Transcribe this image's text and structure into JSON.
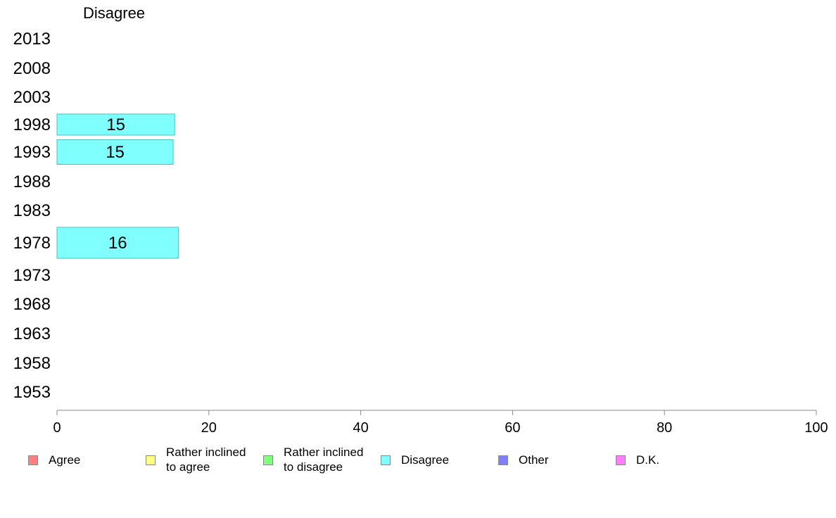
{
  "chart_data": {
    "type": "bar",
    "orientation": "horizontal",
    "title": "Disagree",
    "categories": [
      "2013",
      "2008",
      "2003",
      "1998",
      "1993",
      "1988",
      "1983",
      "1978",
      "1973",
      "1968",
      "1963",
      "1958",
      "1953"
    ],
    "values": [
      null,
      null,
      null,
      15.5,
      15.3,
      null,
      null,
      16.0,
      null,
      null,
      null,
      null,
      null
    ],
    "data_labels": [
      "",
      "",
      "",
      "15",
      "15",
      "",
      "",
      "16",
      "",
      "",
      "",
      "",
      ""
    ],
    "xlim": [
      0,
      100
    ],
    "x_ticks": [
      "0",
      "20",
      "40",
      "60",
      "80",
      "100"
    ],
    "bar_color": "#80ffff",
    "bar_border": "#4dbfbf",
    "legend_position": "bottom",
    "legend": [
      {
        "label": "Agree",
        "color": "#ff8080"
      },
      {
        "label": "Rather inclined\nto agree",
        "color": "#ffff80"
      },
      {
        "label": "Rather inclined\nto disagree",
        "color": "#80ff80"
      },
      {
        "label": "Disagree",
        "color": "#80ffff"
      },
      {
        "label": "Other",
        "color": "#8080ff"
      },
      {
        "label": "D.K.",
        "color": "#ff80ff"
      }
    ]
  }
}
